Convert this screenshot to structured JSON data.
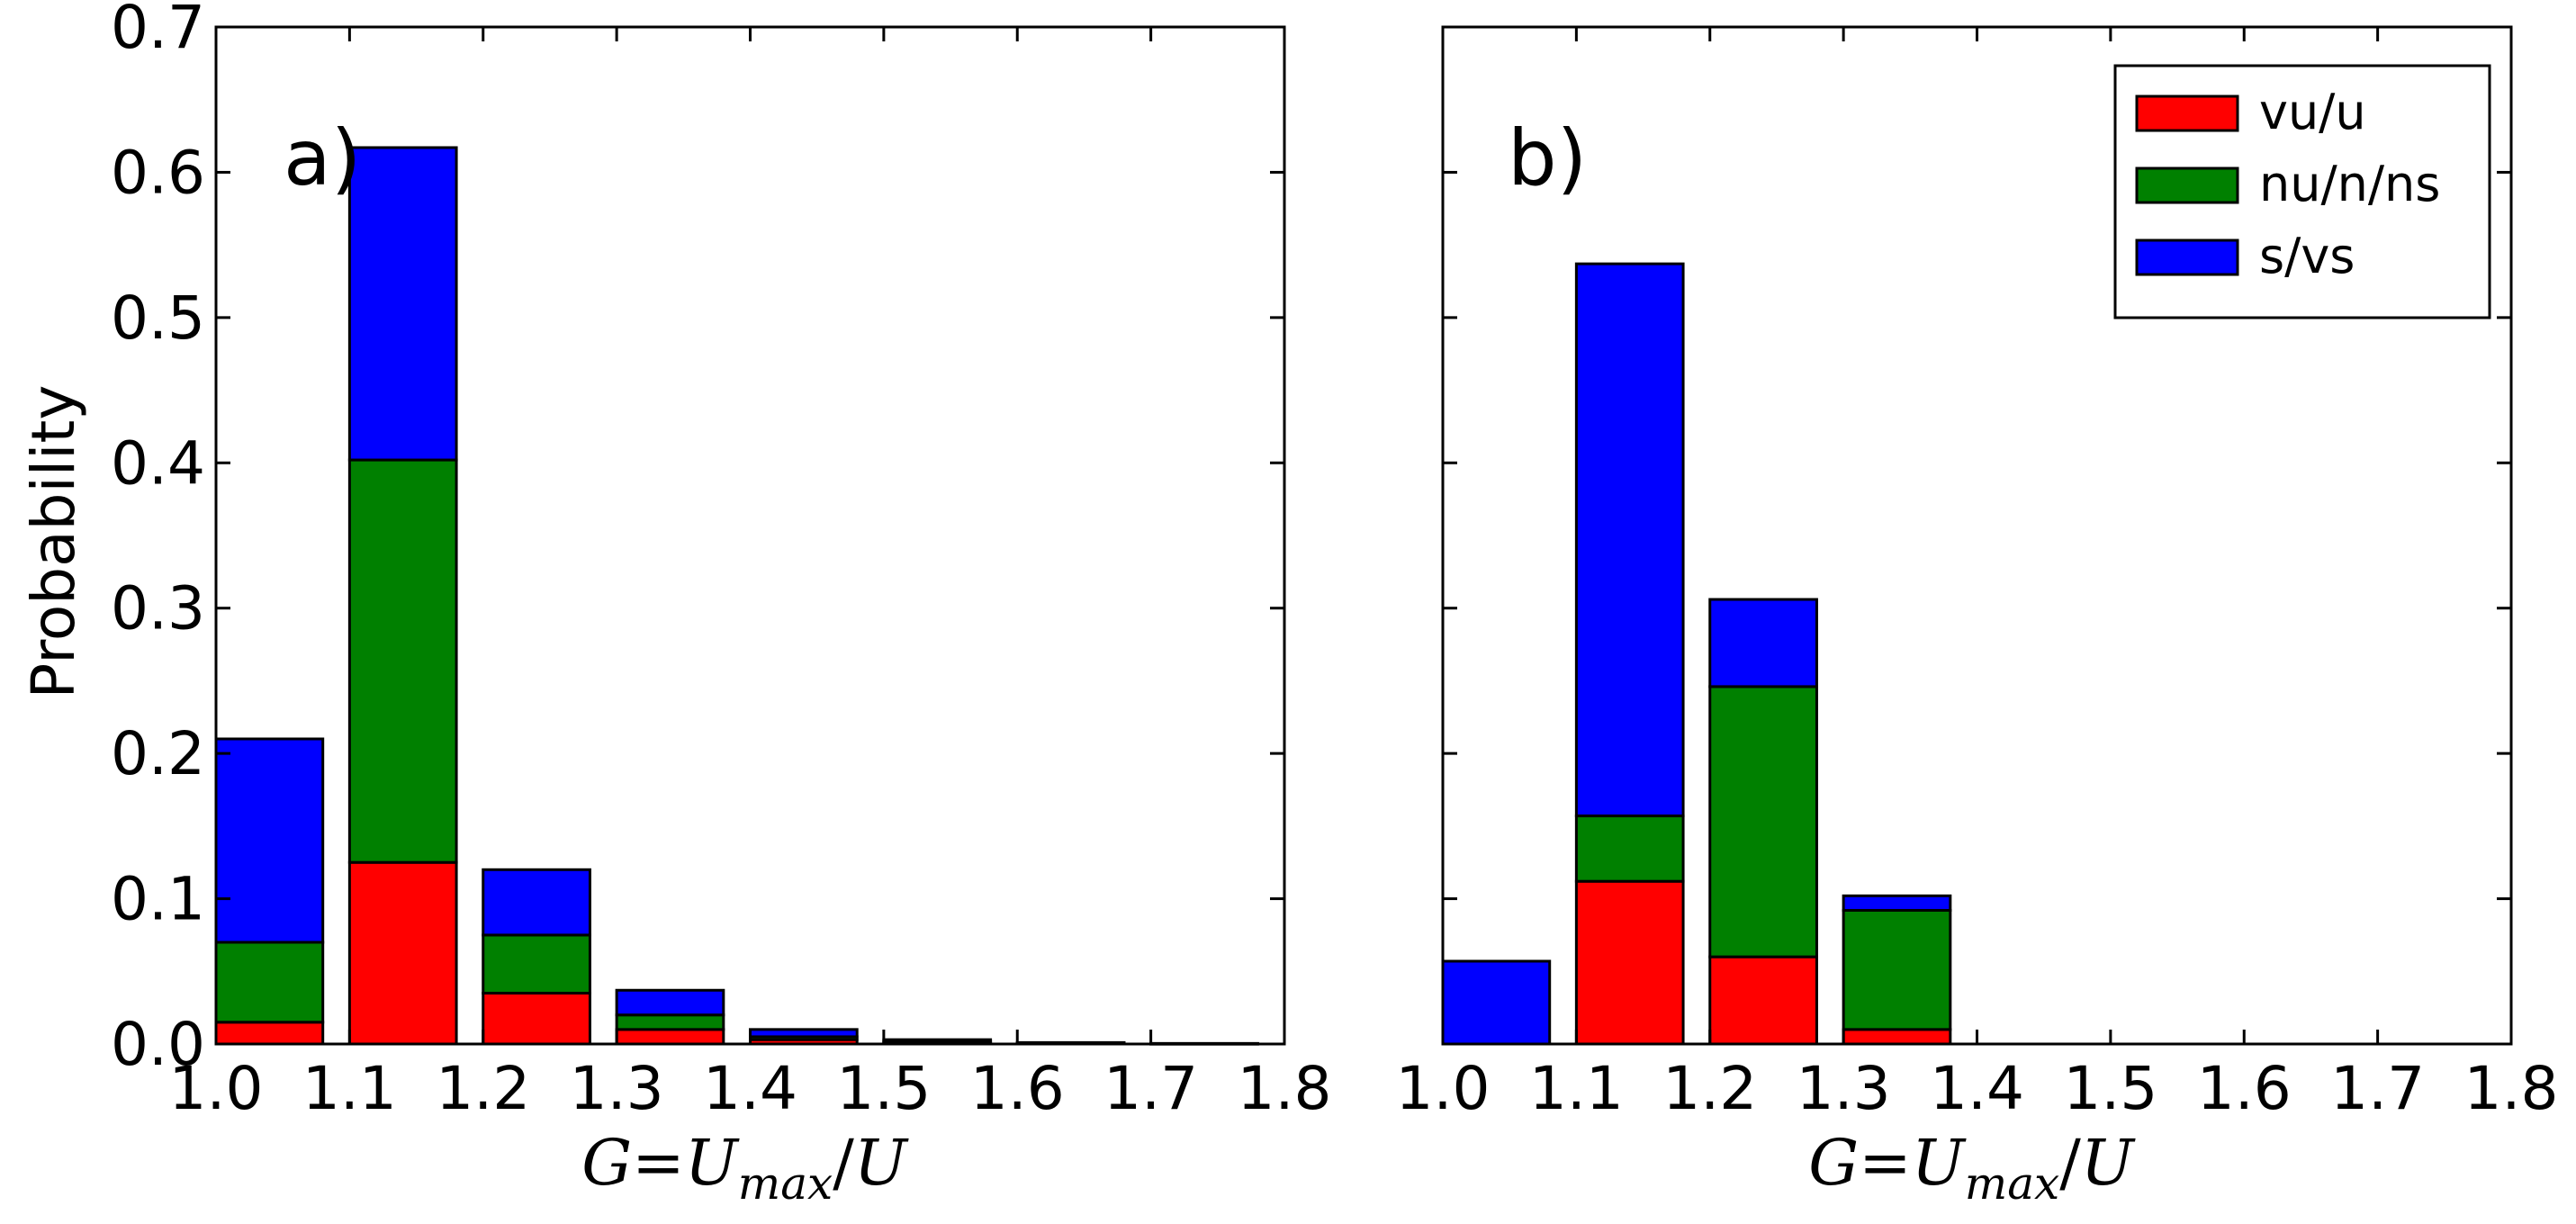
{
  "chart_data": [
    {
      "type": "bar",
      "stacked": true,
      "panel_label": "a)",
      "ylabel": "Probability",
      "xlabel": {
        "lhs": "G",
        "eq": "=",
        "num": "U",
        "sub": "max",
        "slash": "/",
        "den": "U"
      },
      "xlim": [
        1.0,
        1.8
      ],
      "ylim": [
        0.0,
        0.7
      ],
      "xticks": [
        "1.0",
        "1.1",
        "1.2",
        "1.3",
        "1.4",
        "1.5",
        "1.6",
        "1.7",
        "1.8"
      ],
      "yticks": [
        "0.0",
        "0.1",
        "0.2",
        "0.3",
        "0.4",
        "0.5",
        "0.6",
        "0.7"
      ],
      "bin_width": 0.08,
      "bins": [
        1.0,
        1.1,
        1.2,
        1.3,
        1.4,
        1.5,
        1.6,
        1.7
      ],
      "series": [
        {
          "name": "vu/u",
          "color": "#ff0000",
          "values": [
            0.015,
            0.125,
            0.035,
            0.01,
            0.003,
            0.001,
            0.0005,
            0.0002
          ]
        },
        {
          "name": "nu/n/ns",
          "color": "#008000",
          "values": [
            0.055,
            0.277,
            0.04,
            0.01,
            0.002,
            0.001,
            0.0003,
            0.0001
          ]
        },
        {
          "name": "s/vs",
          "color": "#0000ff",
          "values": [
            0.14,
            0.215,
            0.045,
            0.017,
            0.005,
            0.001,
            0.0002,
            0.0001
          ]
        }
      ]
    },
    {
      "type": "bar",
      "stacked": true,
      "panel_label": "b)",
      "xlabel": {
        "lhs": "G",
        "eq": "=",
        "num": "U",
        "sub": "max",
        "slash": "/",
        "den": "U"
      },
      "xlim": [
        1.0,
        1.8
      ],
      "ylim": [
        0.0,
        0.7
      ],
      "xticks": [
        "1.0",
        "1.1",
        "1.2",
        "1.3",
        "1.4",
        "1.5",
        "1.6",
        "1.7",
        "1.8"
      ],
      "bin_width": 0.08,
      "bins": [
        1.0,
        1.1,
        1.2,
        1.3
      ],
      "legend": {
        "location": "top-right"
      },
      "series": [
        {
          "name": "vu/u",
          "color": "#ff0000",
          "values": [
            0.0,
            0.112,
            0.06,
            0.01
          ]
        },
        {
          "name": "nu/n/ns",
          "color": "#008000",
          "values": [
            0.0,
            0.045,
            0.186,
            0.082
          ]
        },
        {
          "name": "s/vs",
          "color": "#0000ff",
          "values": [
            0.057,
            0.38,
            0.06,
            0.01
          ]
        }
      ]
    }
  ]
}
